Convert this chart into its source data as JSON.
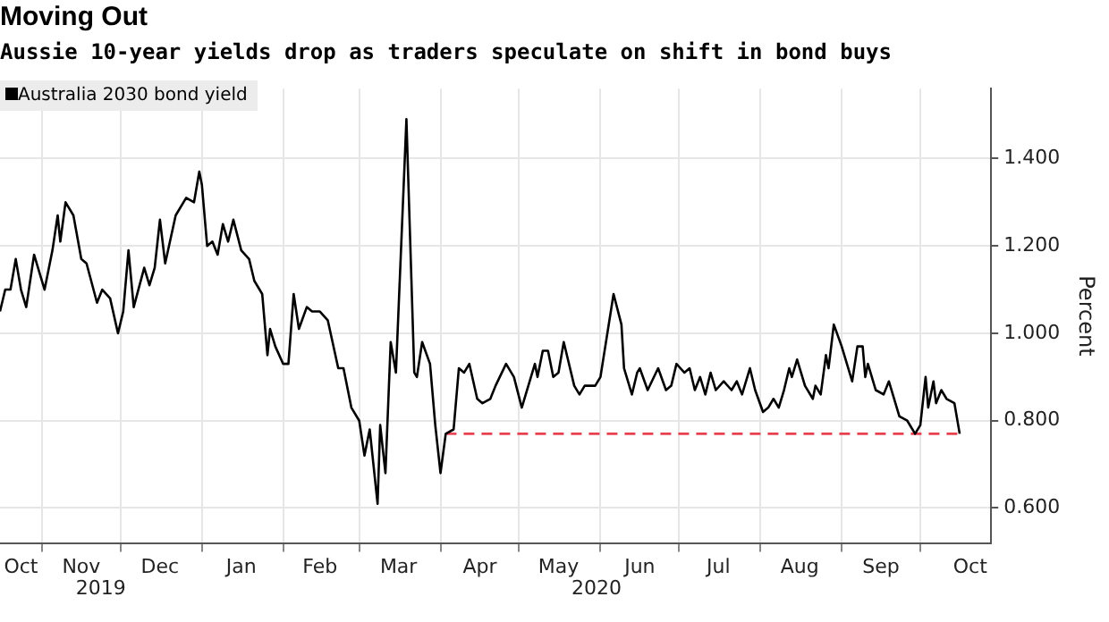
{
  "chart_data": {
    "type": "line",
    "title": "Moving Out",
    "subtitle": "Aussie 10-year yields drop as traders speculate on shift in bond buys",
    "ylabel": "Percent",
    "legend": "top left",
    "grid": true,
    "marker": "none",
    "line_style": "solid",
    "xlim": [
      "2019-10-16",
      "2020-10-28"
    ],
    "xticks": [
      {
        "value": "2019-10-24",
        "label": "Oct"
      },
      {
        "value": "2019-11-01",
        "label": null
      },
      {
        "value": "2019-11-16",
        "label": "Nov"
      },
      {
        "value": "2019-12-01",
        "label": null
      },
      {
        "value": "2019-12-16",
        "label": "Dec"
      },
      {
        "value": "2020-01-01",
        "label": null
      },
      {
        "value": "2020-01-16",
        "label": "Jan"
      },
      {
        "value": "2020-02-01",
        "label": null
      },
      {
        "value": "2020-02-15",
        "label": "Feb"
      },
      {
        "value": "2020-03-01",
        "label": null
      },
      {
        "value": "2020-03-16",
        "label": "Mar"
      },
      {
        "value": "2020-04-01",
        "label": null
      },
      {
        "value": "2020-04-16",
        "label": "Apr"
      },
      {
        "value": "2020-05-01",
        "label": null
      },
      {
        "value": "2020-05-16",
        "label": "May"
      },
      {
        "value": "2020-06-01",
        "label": null
      },
      {
        "value": "2020-06-16",
        "label": "Jun"
      },
      {
        "value": "2020-07-01",
        "label": null
      },
      {
        "value": "2020-07-16",
        "label": "Jul"
      },
      {
        "value": "2020-08-01",
        "label": null
      },
      {
        "value": "2020-08-16",
        "label": "Aug"
      },
      {
        "value": "2020-09-01",
        "label": null
      },
      {
        "value": "2020-09-16",
        "label": "Sep"
      },
      {
        "value": "2020-10-01",
        "label": null
      },
      {
        "value": "2020-10-20",
        "label": "Oct"
      }
    ],
    "ylim": [
      0.52,
      1.56
    ],
    "yticks": [
      {
        "value": 0.6,
        "label": "0.600"
      },
      {
        "value": 0.8,
        "label": "0.800"
      },
      {
        "value": 1.0,
        "label": "1.000"
      },
      {
        "value": 1.2,
        "label": "1.200"
      },
      {
        "value": 1.4,
        "label": "1.400"
      }
    ],
    "annotations": [
      "2019",
      "2020"
    ],
    "series": [
      {
        "name": "Australia 2030 bond yield",
        "color": "#000000",
        "x": [
          "2019-10-16",
          "2019-10-18",
          "2019-10-20",
          "2019-10-22",
          "2019-10-24",
          "2019-10-26",
          "2019-10-29",
          "2019-10-31",
          "2019-11-02",
          "2019-11-05",
          "2019-11-07",
          "2019-11-08",
          "2019-11-10",
          "2019-11-13",
          "2019-11-16",
          "2019-11-18",
          "2019-11-22",
          "2019-11-24",
          "2019-11-27",
          "2019-11-30",
          "2019-12-02",
          "2019-12-04",
          "2019-12-06",
          "2019-12-10",
          "2019-12-12",
          "2019-12-14",
          "2019-12-16",
          "2019-12-18",
          "2019-12-22",
          "2019-12-26",
          "2019-12-29",
          "2019-12-31",
          "2020-01-01",
          "2020-01-03",
          "2020-01-05",
          "2020-01-07",
          "2020-01-09",
          "2020-01-11",
          "2020-01-13",
          "2020-01-16",
          "2020-01-19",
          "2020-01-21",
          "2020-01-24",
          "2020-01-26",
          "2020-01-27",
          "2020-01-29",
          "2020-02-01",
          "2020-02-03",
          "2020-02-05",
          "2020-02-07",
          "2020-02-10",
          "2020-02-12",
          "2020-02-15",
          "2020-02-18",
          "2020-02-22",
          "2020-02-24",
          "2020-02-27",
          "2020-03-01",
          "2020-03-03",
          "2020-03-05",
          "2020-03-08",
          "2020-03-09",
          "2020-03-11",
          "2020-03-13",
          "2020-03-15",
          "2020-03-19",
          "2020-03-22",
          "2020-03-23",
          "2020-03-25",
          "2020-03-28",
          "2020-03-30",
          "2020-04-01",
          "2020-04-03",
          "2020-04-06",
          "2020-04-08",
          "2020-04-10",
          "2020-04-12",
          "2020-04-15",
          "2020-04-17",
          "2020-04-20",
          "2020-04-22",
          "2020-04-26",
          "2020-04-29",
          "2020-05-02",
          "2020-05-07",
          "2020-05-08",
          "2020-05-10",
          "2020-05-12",
          "2020-05-14",
          "2020-05-16",
          "2020-05-18",
          "2020-05-22",
          "2020-05-24",
          "2020-05-26",
          "2020-05-30",
          "2020-06-01",
          "2020-06-06",
          "2020-06-09",
          "2020-06-10",
          "2020-06-13",
          "2020-06-15",
          "2020-06-16",
          "2020-06-19",
          "2020-06-23",
          "2020-06-26",
          "2020-06-28",
          "2020-06-30",
          "2020-07-03",
          "2020-07-05",
          "2020-07-07",
          "2020-07-09",
          "2020-07-11",
          "2020-07-13",
          "2020-07-15",
          "2020-07-18",
          "2020-07-21",
          "2020-07-23",
          "2020-07-25",
          "2020-07-28",
          "2020-07-30",
          "2020-08-02",
          "2020-08-04",
          "2020-08-06",
          "2020-08-08",
          "2020-08-10",
          "2020-08-12",
          "2020-08-13",
          "2020-08-15",
          "2020-08-18",
          "2020-08-21",
          "2020-08-22",
          "2020-08-24",
          "2020-08-26",
          "2020-08-27",
          "2020-08-29",
          "2020-09-01",
          "2020-09-05",
          "2020-09-07",
          "2020-09-09",
          "2020-09-10",
          "2020-09-11",
          "2020-09-14",
          "2020-09-17",
          "2020-09-19",
          "2020-09-23",
          "2020-09-26",
          "2020-09-29",
          "2020-10-01",
          "2020-10-03",
          "2020-10-04",
          "2020-10-06",
          "2020-10-07",
          "2020-10-09",
          "2020-10-11",
          "2020-10-14",
          "2020-10-16"
        ],
        "values": [
          1.05,
          1.1,
          1.1,
          1.17,
          1.1,
          1.06,
          1.18,
          1.14,
          1.1,
          1.19,
          1.27,
          1.21,
          1.3,
          1.27,
          1.17,
          1.16,
          1.07,
          1.1,
          1.08,
          1.0,
          1.05,
          1.19,
          1.06,
          1.15,
          1.11,
          1.15,
          1.26,
          1.16,
          1.27,
          1.31,
          1.3,
          1.37,
          1.34,
          1.2,
          1.21,
          1.18,
          1.25,
          1.21,
          1.26,
          1.19,
          1.17,
          1.12,
          1.09,
          0.95,
          1.01,
          0.97,
          0.93,
          0.93,
          1.09,
          1.01,
          1.06,
          1.05,
          1.05,
          1.03,
          0.92,
          0.92,
          0.83,
          0.8,
          0.72,
          0.78,
          0.61,
          0.79,
          0.68,
          0.98,
          0.91,
          1.49,
          0.91,
          0.9,
          0.98,
          0.93,
          0.79,
          0.68,
          0.77,
          0.78,
          0.92,
          0.91,
          0.93,
          0.85,
          0.84,
          0.85,
          0.88,
          0.93,
          0.9,
          0.83,
          0.93,
          0.9,
          0.96,
          0.96,
          0.9,
          0.91,
          0.98,
          0.88,
          0.86,
          0.88,
          0.88,
          0.9,
          1.09,
          1.02,
          0.92,
          0.86,
          0.91,
          0.92,
          0.87,
          0.92,
          0.87,
          0.88,
          0.93,
          0.91,
          0.92,
          0.87,
          0.9,
          0.86,
          0.91,
          0.87,
          0.89,
          0.87,
          0.89,
          0.86,
          0.92,
          0.87,
          0.82,
          0.83,
          0.85,
          0.83,
          0.87,
          0.92,
          0.9,
          0.94,
          0.88,
          0.85,
          0.88,
          0.86,
          0.95,
          0.92,
          1.02,
          0.97,
          0.89,
          0.97,
          0.97,
          0.9,
          0.93,
          0.87,
          0.86,
          0.89,
          0.81,
          0.8,
          0.77,
          0.79,
          0.9,
          0.83,
          0.89,
          0.84,
          0.87,
          0.85,
          0.84,
          0.77
        ]
      },
      {
        "type": "line",
        "color": "#e8414f",
        "line_style": "dashed",
        "x": [
          "2020-04-03",
          "2020-10-16"
        ],
        "values": [
          0.77,
          0.77
        ]
      }
    ]
  }
}
